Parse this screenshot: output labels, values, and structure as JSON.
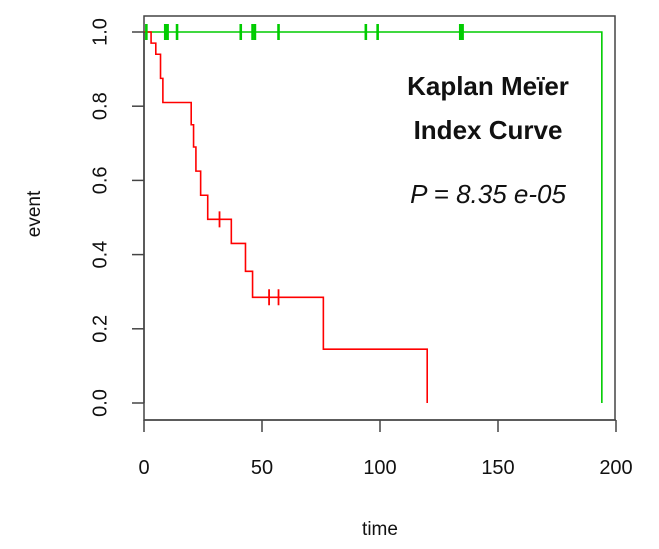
{
  "chart_data": {
    "type": "line",
    "xlabel": "time",
    "ylabel": "event",
    "xlim": [
      0,
      200
    ],
    "ylim": [
      0,
      1
    ],
    "x_ticks": [
      0,
      50,
      100,
      150,
      200
    ],
    "y_ticks": [
      0.0,
      0.2,
      0.4,
      0.6,
      0.8,
      1.0
    ],
    "x_tick_labels": [
      "0",
      "50",
      "100",
      "150",
      "200"
    ],
    "y_tick_labels": [
      "0.0",
      "0.2",
      "0.4",
      "0.6",
      "0.8",
      "1.0"
    ],
    "grid": false,
    "annotations": [
      "Kaplan Meïer",
      "Index Curve",
      "P = 8.35 e-05"
    ],
    "series": [
      {
        "color": "#00cc00",
        "step_points": [
          {
            "x": 0,
            "y": 1.0
          },
          {
            "x": 194,
            "y": 1.0
          },
          {
            "x": 194,
            "y": 0.0
          }
        ],
        "censor_times": [
          1,
          9,
          10,
          14,
          41,
          46,
          47,
          57,
          94,
          99,
          134,
          135
        ],
        "censor_values": [
          1,
          1,
          1,
          1,
          1,
          1,
          1,
          1,
          1,
          1,
          1,
          1
        ]
      },
      {
        "color": "#ff0000",
        "step_points": [
          {
            "x": 0,
            "y": 1.0
          },
          {
            "x": 3,
            "y": 1.0
          },
          {
            "x": 3,
            "y": 0.97
          },
          {
            "x": 5,
            "y": 0.97
          },
          {
            "x": 5,
            "y": 0.94
          },
          {
            "x": 7,
            "y": 0.94
          },
          {
            "x": 7,
            "y": 0.875
          },
          {
            "x": 8,
            "y": 0.875
          },
          {
            "x": 8,
            "y": 0.81
          },
          {
            "x": 20,
            "y": 0.81
          },
          {
            "x": 20,
            "y": 0.75
          },
          {
            "x": 21,
            "y": 0.75
          },
          {
            "x": 21,
            "y": 0.69
          },
          {
            "x": 22,
            "y": 0.69
          },
          {
            "x": 22,
            "y": 0.625
          },
          {
            "x": 24,
            "y": 0.625
          },
          {
            "x": 24,
            "y": 0.56
          },
          {
            "x": 27,
            "y": 0.56
          },
          {
            "x": 27,
            "y": 0.495
          },
          {
            "x": 37,
            "y": 0.495
          },
          {
            "x": 37,
            "y": 0.43
          },
          {
            "x": 43,
            "y": 0.43
          },
          {
            "x": 43,
            "y": 0.355
          },
          {
            "x": 46,
            "y": 0.355
          },
          {
            "x": 46,
            "y": 0.285
          },
          {
            "x": 76,
            "y": 0.285
          },
          {
            "x": 76,
            "y": 0.145
          },
          {
            "x": 120,
            "y": 0.145
          },
          {
            "x": 120,
            "y": 0.0
          }
        ],
        "censor_times": [
          32,
          53,
          57
        ],
        "censor_values": [
          0.495,
          0.285,
          0.285
        ]
      }
    ]
  }
}
